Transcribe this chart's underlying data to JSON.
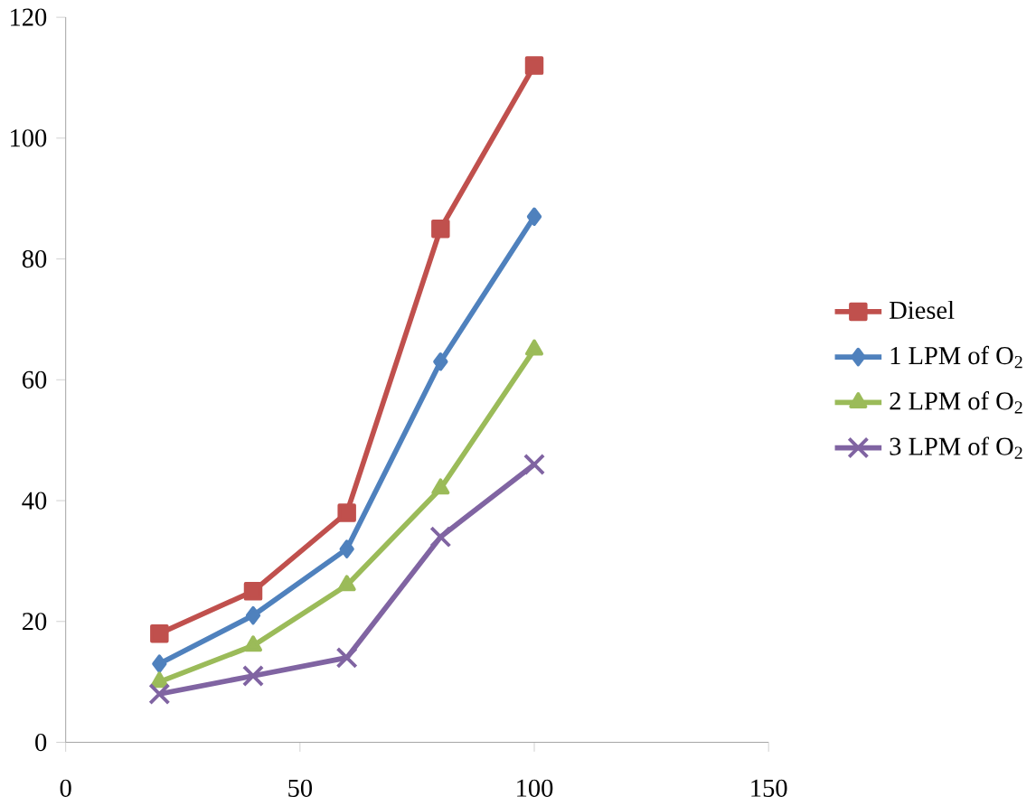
{
  "chart_data": {
    "type": "line",
    "x": [
      20,
      40,
      60,
      80,
      100
    ],
    "xlim": [
      0,
      150
    ],
    "xticks": [
      0,
      50,
      100,
      150
    ],
    "ylim": [
      0,
      120
    ],
    "yticks": [
      0,
      20,
      40,
      60,
      80,
      100,
      120
    ],
    "legend": "right",
    "series": [
      {
        "name": "Diesel",
        "color": "#c0504d",
        "marker": "square",
        "values": [
          18,
          25,
          38,
          85,
          112
        ]
      },
      {
        "name": "1 LPM of O$_{2}$",
        "color": "#4f81bd",
        "marker": "diamond",
        "values": [
          13,
          21,
          32,
          63,
          87
        ]
      },
      {
        "name": "2 LPM of O$_{2}$",
        "color": "#9bbb59",
        "marker": "triangle",
        "values": [
          10,
          16,
          26,
          42,
          65
        ]
      },
      {
        "name": "3 LPM of O$_{2}$",
        "color": "#8064a2",
        "marker": "cross",
        "values": [
          8,
          11,
          14,
          34,
          46
        ]
      }
    ]
  }
}
